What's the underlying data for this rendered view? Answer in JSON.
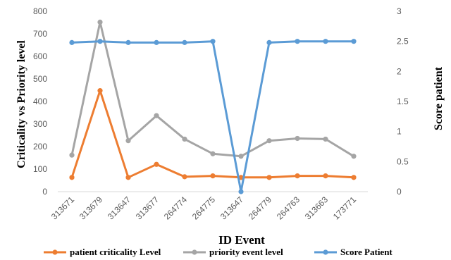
{
  "chart_data": {
    "type": "line",
    "categories": [
      "313671",
      "313679",
      "313647",
      "313677",
      "264774",
      "264775",
      "313647",
      "264779",
      "264763",
      "313663",
      "173771"
    ],
    "xlabel": "ID Event",
    "ylabel_left": "Criticality vs Priority  level",
    "ylabel_right": "Score  patient",
    "ylim_left": [
      0,
      800
    ],
    "yticks_left": [
      0,
      100,
      200,
      300,
      400,
      500,
      600,
      700,
      800
    ],
    "ylim_right": [
      0,
      3
    ],
    "yticks_right": [
      0,
      0.5,
      1,
      1.5,
      2,
      2.5,
      3
    ],
    "grid": false,
    "legend_position": "bottom",
    "series": [
      {
        "name": "patient criticality Level",
        "axis": "left",
        "color": "#ED7D31",
        "values": [
          63,
          448,
          63,
          121,
          66,
          70,
          63,
          63,
          70,
          70,
          63
        ]
      },
      {
        "name": "priority event level",
        "axis": "left",
        "color": "#A5A5A5",
        "values": [
          162,
          752,
          226,
          337,
          233,
          168,
          157,
          226,
          236,
          233,
          157
        ]
      },
      {
        "name": "Score Patient",
        "axis": "right",
        "color": "#5B9BD5",
        "values": [
          2.48,
          2.5,
          2.48,
          2.48,
          2.48,
          2.5,
          0.0,
          2.48,
          2.5,
          2.5,
          2.5
        ]
      }
    ]
  }
}
